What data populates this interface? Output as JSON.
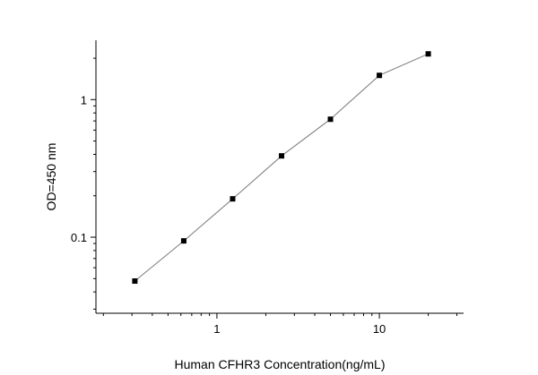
{
  "chart_data": {
    "type": "line",
    "xlabel": "Human CFHR3 Concentration(ng/mL)",
    "ylabel": "OD=450 nm",
    "x_scale": "log",
    "y_scale": "log",
    "xlim": [
      0.18,
      33
    ],
    "ylim": [
      0.028,
      2.7
    ],
    "x_ticks": [
      {
        "value": 1,
        "label": "1"
      },
      {
        "value": 10,
        "label": "10"
      }
    ],
    "y_ticks": [
      {
        "value": 0.1,
        "label": "0.1"
      },
      {
        "value": 1,
        "label": "1"
      }
    ],
    "grid": false,
    "marker_color": "#000000",
    "line_color": "#7a7a7a",
    "series": [
      {
        "x": [
          0.3125,
          0.625,
          1.25,
          2.5,
          5,
          10,
          20
        ],
        "y": [
          0.048,
          0.094,
          0.19,
          0.39,
          0.72,
          1.5,
          2.15
        ]
      }
    ]
  }
}
